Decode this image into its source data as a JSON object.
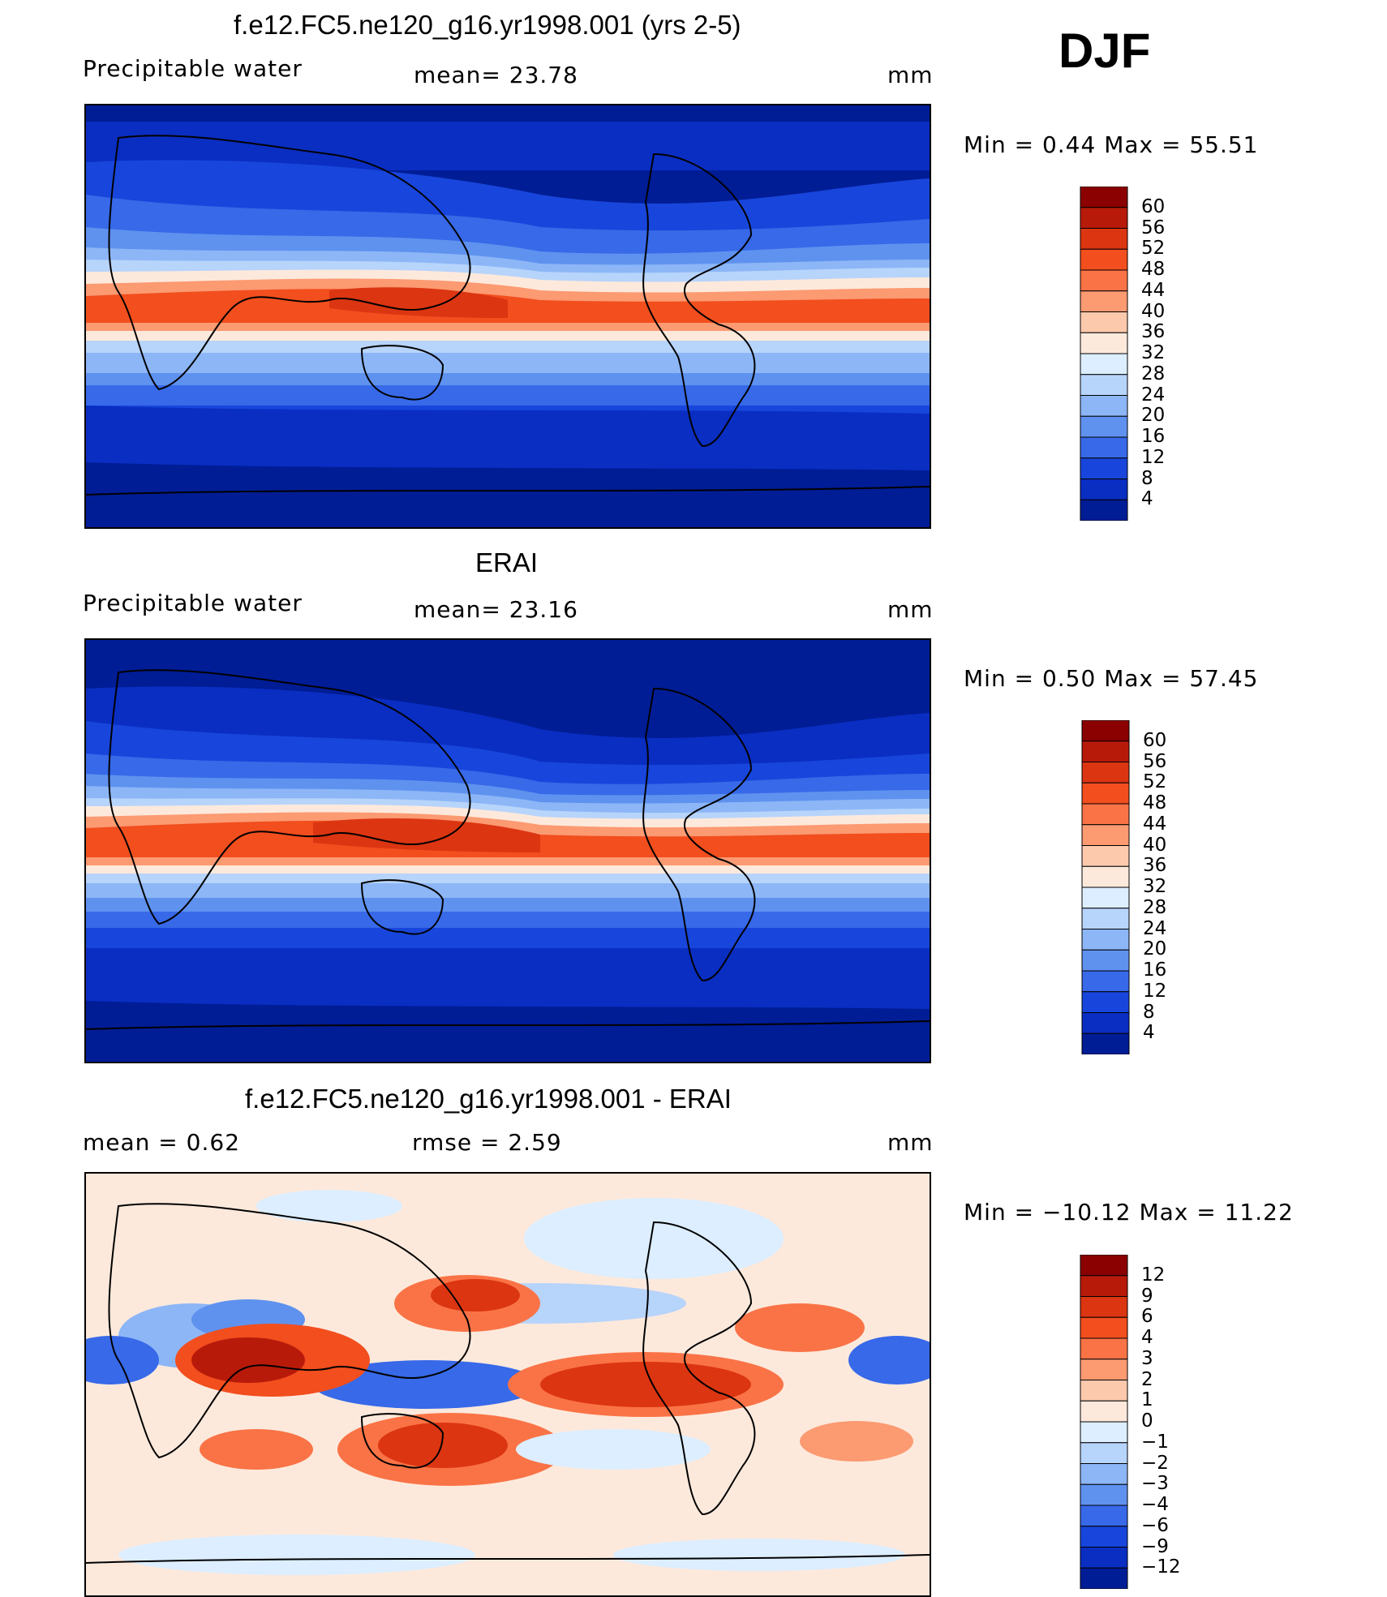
{
  "season": "DJF",
  "panels": [
    {
      "title": "f.e12.FC5.ne120_g16.yr1998.001 (yrs 2-5)",
      "left_label": "Precipitable  water",
      "center_label": "mean=   23.78",
      "units": "mm",
      "minmax": "Min  =     0.44  Max  =    55.51",
      "colorbar_levels": [
        "60",
        "56",
        "52",
        "48",
        "44",
        "40",
        "36",
        "32",
        "28",
        "24",
        "20",
        "16",
        "12",
        "8",
        "4"
      ],
      "colors": [
        "#8b0000",
        "#b81a0a",
        "#dc3512",
        "#f24e1e",
        "#fa7346",
        "#fc9a72",
        "#fdc9ad",
        "#fde9dc",
        "#dceeff",
        "#b7d4fb",
        "#8cb6f6",
        "#5f92ef",
        "#3769e8",
        "#1846dc",
        "#0a2ec2",
        "#001d96"
      ]
    },
    {
      "title": "ERAI",
      "left_label": "Precipitable  water",
      "center_label": "mean=   23.16",
      "units": "mm",
      "minmax": "Min  =     0.50  Max  =    57.45",
      "colorbar_levels": [
        "60",
        "56",
        "52",
        "48",
        "44",
        "40",
        "36",
        "32",
        "28",
        "24",
        "20",
        "16",
        "12",
        "8",
        "4"
      ],
      "colors": [
        "#8b0000",
        "#b81a0a",
        "#dc3512",
        "#f24e1e",
        "#fa7346",
        "#fc9a72",
        "#fdc9ad",
        "#fde9dc",
        "#dceeff",
        "#b7d4fb",
        "#8cb6f6",
        "#5f92ef",
        "#3769e8",
        "#1846dc",
        "#0a2ec2",
        "#001d96"
      ]
    },
    {
      "title": "f.e12.FC5.ne120_g16.yr1998.001 - ERAI",
      "left_label": "mean  =      0.62",
      "center_label": "rmse  =      2.59",
      "units": "mm",
      "minmax": "Min  = −10.12  Max  =     11.22",
      "colorbar_levels": [
        "12",
        "9",
        "6",
        "4",
        "3",
        "2",
        "1",
        "0",
        "−1",
        "−2",
        "−3",
        "−4",
        "−6",
        "−9",
        "−12"
      ],
      "colors": [
        "#8b0000",
        "#b81a0a",
        "#dc3512",
        "#f24e1e",
        "#fa7346",
        "#fc9a72",
        "#fdc9ad",
        "#fde9dc",
        "#dceeff",
        "#b7d4fb",
        "#8cb6f6",
        "#5f92ef",
        "#3769e8",
        "#1846dc",
        "#0a2ec2",
        "#001d96"
      ]
    }
  ]
}
